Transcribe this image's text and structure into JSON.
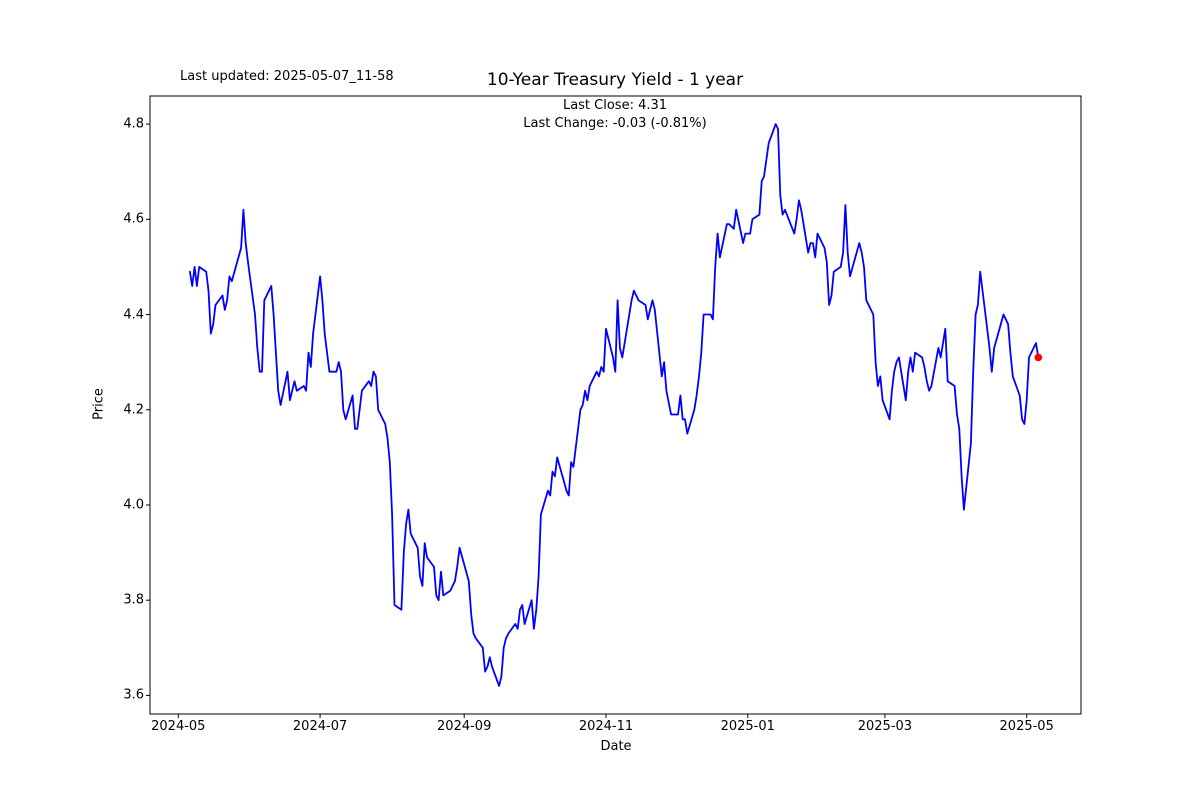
{
  "figure": {
    "last_updated_label": "Last updated: 2025-05-07_11-58",
    "title": "10-Year Treasury Yield - 1 year",
    "subtitle_line1": "Last Close: 4.31",
    "subtitle_line2": "Last Change: -0.03 (-0.81%)",
    "xlabel": "Date",
    "ylabel": "Price"
  },
  "chart_data": {
    "type": "line",
    "title": "10-Year Treasury Yield - 1 year",
    "xlabel": "Date",
    "ylabel": "Price",
    "legend": "none",
    "grid": false,
    "line_color": "#0000ff",
    "last_point_marker_color": "#ff0000",
    "last_close": 4.31,
    "last_change_text": "-0.03 (-0.81%)",
    "xticks": [
      "2024-05",
      "2024-07",
      "2024-09",
      "2024-11",
      "2025-01",
      "2025-03",
      "2025-05"
    ],
    "yticks": [
      3.6,
      3.8,
      4.0,
      4.2,
      4.4,
      4.6,
      4.8
    ],
    "xlim": [
      "2024-04-19",
      "2025-05-24"
    ],
    "ylim": [
      3.561,
      4.859
    ],
    "x": [
      "2024-05-06",
      "2024-05-07",
      "2024-05-08",
      "2024-05-09",
      "2024-05-10",
      "2024-05-13",
      "2024-05-14",
      "2024-05-15",
      "2024-05-16",
      "2024-05-17",
      "2024-05-20",
      "2024-05-21",
      "2024-05-22",
      "2024-05-23",
      "2024-05-24",
      "2024-05-28",
      "2024-05-29",
      "2024-05-30",
      "2024-05-31",
      "2024-06-03",
      "2024-06-04",
      "2024-06-05",
      "2024-06-06",
      "2024-06-07",
      "2024-06-10",
      "2024-06-11",
      "2024-06-12",
      "2024-06-13",
      "2024-06-14",
      "2024-06-17",
      "2024-06-18",
      "2024-06-20",
      "2024-06-21",
      "2024-06-24",
      "2024-06-25",
      "2024-06-26",
      "2024-06-27",
      "2024-06-28",
      "2024-07-01",
      "2024-07-02",
      "2024-07-03",
      "2024-07-05",
      "2024-07-08",
      "2024-07-09",
      "2024-07-10",
      "2024-07-11",
      "2024-07-12",
      "2024-07-15",
      "2024-07-16",
      "2024-07-17",
      "2024-07-18",
      "2024-07-19",
      "2024-07-22",
      "2024-07-23",
      "2024-07-24",
      "2024-07-25",
      "2024-07-26",
      "2024-07-29",
      "2024-07-30",
      "2024-07-31",
      "2024-08-01",
      "2024-08-02",
      "2024-08-05",
      "2024-08-06",
      "2024-08-07",
      "2024-08-08",
      "2024-08-09",
      "2024-08-12",
      "2024-08-13",
      "2024-08-14",
      "2024-08-15",
      "2024-08-16",
      "2024-08-19",
      "2024-08-20",
      "2024-08-21",
      "2024-08-22",
      "2024-08-23",
      "2024-08-26",
      "2024-08-27",
      "2024-08-28",
      "2024-08-29",
      "2024-08-30",
      "2024-09-03",
      "2024-09-04",
      "2024-09-05",
      "2024-09-06",
      "2024-09-09",
      "2024-09-10",
      "2024-09-11",
      "2024-09-12",
      "2024-09-13",
      "2024-09-16",
      "2024-09-17",
      "2024-09-18",
      "2024-09-19",
      "2024-09-20",
      "2024-09-23",
      "2024-09-24",
      "2024-09-25",
      "2024-09-26",
      "2024-09-27",
      "2024-09-30",
      "2024-10-01",
      "2024-10-02",
      "2024-10-03",
      "2024-10-04",
      "2024-10-07",
      "2024-10-08",
      "2024-10-09",
      "2024-10-10",
      "2024-10-11",
      "2024-10-15",
      "2024-10-16",
      "2024-10-17",
      "2024-10-18",
      "2024-10-21",
      "2024-10-22",
      "2024-10-23",
      "2024-10-24",
      "2024-10-25",
      "2024-10-28",
      "2024-10-29",
      "2024-10-30",
      "2024-10-31",
      "2024-11-01",
      "2024-11-04",
      "2024-11-05",
      "2024-11-06",
      "2024-11-07",
      "2024-11-08",
      "2024-11-12",
      "2024-11-13",
      "2024-11-14",
      "2024-11-15",
      "2024-11-18",
      "2024-11-19",
      "2024-11-20",
      "2024-11-21",
      "2024-11-22",
      "2024-11-25",
      "2024-11-26",
      "2024-11-27",
      "2024-11-29",
      "2024-12-02",
      "2024-12-03",
      "2024-12-04",
      "2024-12-05",
      "2024-12-06",
      "2024-12-09",
      "2024-12-10",
      "2024-12-11",
      "2024-12-12",
      "2024-12-13",
      "2024-12-16",
      "2024-12-17",
      "2024-12-18",
      "2024-12-19",
      "2024-12-20",
      "2024-12-23",
      "2024-12-24",
      "2024-12-26",
      "2024-12-27",
      "2024-12-30",
      "2024-12-31",
      "2025-01-02",
      "2025-01-03",
      "2025-01-06",
      "2025-01-07",
      "2025-01-08",
      "2025-01-10",
      "2025-01-13",
      "2025-01-14",
      "2025-01-15",
      "2025-01-16",
      "2025-01-17",
      "2025-01-21",
      "2025-01-22",
      "2025-01-23",
      "2025-01-24",
      "2025-01-27",
      "2025-01-28",
      "2025-01-29",
      "2025-01-30",
      "2025-01-31",
      "2025-02-03",
      "2025-02-04",
      "2025-02-05",
      "2025-02-06",
      "2025-02-07",
      "2025-02-10",
      "2025-02-11",
      "2025-02-12",
      "2025-02-13",
      "2025-02-14",
      "2025-02-18",
      "2025-02-19",
      "2025-02-20",
      "2025-02-21",
      "2025-02-24",
      "2025-02-25",
      "2025-02-26",
      "2025-02-27",
      "2025-02-28",
      "2025-03-03",
      "2025-03-04",
      "2025-03-05",
      "2025-03-06",
      "2025-03-07",
      "2025-03-10",
      "2025-03-11",
      "2025-03-12",
      "2025-03-13",
      "2025-03-14",
      "2025-03-17",
      "2025-03-18",
      "2025-03-19",
      "2025-03-20",
      "2025-03-21",
      "2025-03-24",
      "2025-03-25",
      "2025-03-26",
      "2025-03-27",
      "2025-03-28",
      "2025-03-31",
      "2025-04-01",
      "2025-04-02",
      "2025-04-03",
      "2025-04-04",
      "2025-04-07",
      "2025-04-08",
      "2025-04-09",
      "2025-04-10",
      "2025-04-11",
      "2025-04-14",
      "2025-04-15",
      "2025-04-16",
      "2025-04-17",
      "2025-04-21",
      "2025-04-22",
      "2025-04-23",
      "2025-04-24",
      "2025-04-25",
      "2025-04-28",
      "2025-04-29",
      "2025-04-30",
      "2025-05-01",
      "2025-05-02",
      "2025-05-05",
      "2025-05-06"
    ],
    "y": [
      4.49,
      4.46,
      4.5,
      4.46,
      4.5,
      4.49,
      4.45,
      4.36,
      4.38,
      4.42,
      4.44,
      4.41,
      4.43,
      4.48,
      4.47,
      4.54,
      4.62,
      4.55,
      4.51,
      4.4,
      4.33,
      4.28,
      4.28,
      4.43,
      4.46,
      4.4,
      4.32,
      4.24,
      4.21,
      4.28,
      4.22,
      4.26,
      4.24,
      4.25,
      4.24,
      4.32,
      4.29,
      4.36,
      4.48,
      4.43,
      4.36,
      4.28,
      4.28,
      4.3,
      4.28,
      4.2,
      4.18,
      4.23,
      4.16,
      4.16,
      4.2,
      4.24,
      4.26,
      4.25,
      4.28,
      4.27,
      4.2,
      4.17,
      4.14,
      4.09,
      3.98,
      3.79,
      3.78,
      3.9,
      3.96,
      3.99,
      3.94,
      3.91,
      3.85,
      3.83,
      3.92,
      3.89,
      3.87,
      3.81,
      3.8,
      3.86,
      3.81,
      3.82,
      3.83,
      3.84,
      3.87,
      3.91,
      3.84,
      3.77,
      3.73,
      3.72,
      3.7,
      3.65,
      3.66,
      3.68,
      3.66,
      3.62,
      3.64,
      3.7,
      3.72,
      3.73,
      3.75,
      3.74,
      3.78,
      3.79,
      3.75,
      3.8,
      3.74,
      3.78,
      3.85,
      3.98,
      4.03,
      4.02,
      4.07,
      4.06,
      4.1,
      4.03,
      4.02,
      4.09,
      4.08,
      4.2,
      4.21,
      4.24,
      4.22,
      4.25,
      4.28,
      4.27,
      4.29,
      4.28,
      4.37,
      4.31,
      4.28,
      4.43,
      4.33,
      4.31,
      4.43,
      4.45,
      4.44,
      4.43,
      4.42,
      4.39,
      4.41,
      4.43,
      4.41,
      4.27,
      4.3,
      4.24,
      4.19,
      4.19,
      4.23,
      4.18,
      4.18,
      4.15,
      4.2,
      4.23,
      4.27,
      4.32,
      4.4,
      4.4,
      4.39,
      4.5,
      4.57,
      4.52,
      4.59,
      4.59,
      4.58,
      4.62,
      4.55,
      4.57,
      4.57,
      4.6,
      4.61,
      4.68,
      4.69,
      4.76,
      4.8,
      4.79,
      4.65,
      4.61,
      4.62,
      4.57,
      4.6,
      4.64,
      4.62,
      4.53,
      4.55,
      4.55,
      4.52,
      4.57,
      4.54,
      4.51,
      4.42,
      4.44,
      4.49,
      4.5,
      4.53,
      4.63,
      4.53,
      4.48,
      4.55,
      4.53,
      4.5,
      4.43,
      4.4,
      4.3,
      4.25,
      4.27,
      4.22,
      4.18,
      4.24,
      4.28,
      4.3,
      4.31,
      4.22,
      4.28,
      4.31,
      4.28,
      4.32,
      4.31,
      4.29,
      4.26,
      4.24,
      4.25,
      4.33,
      4.31,
      4.34,
      4.37,
      4.26,
      4.25,
      4.19,
      4.16,
      4.06,
      3.99,
      4.13,
      4.28,
      4.4,
      4.42,
      4.49,
      4.37,
      4.33,
      4.28,
      4.33,
      4.4,
      4.39,
      4.38,
      4.32,
      4.27,
      4.23,
      4.18,
      4.17,
      4.22,
      4.31,
      4.34,
      4.31
    ]
  }
}
